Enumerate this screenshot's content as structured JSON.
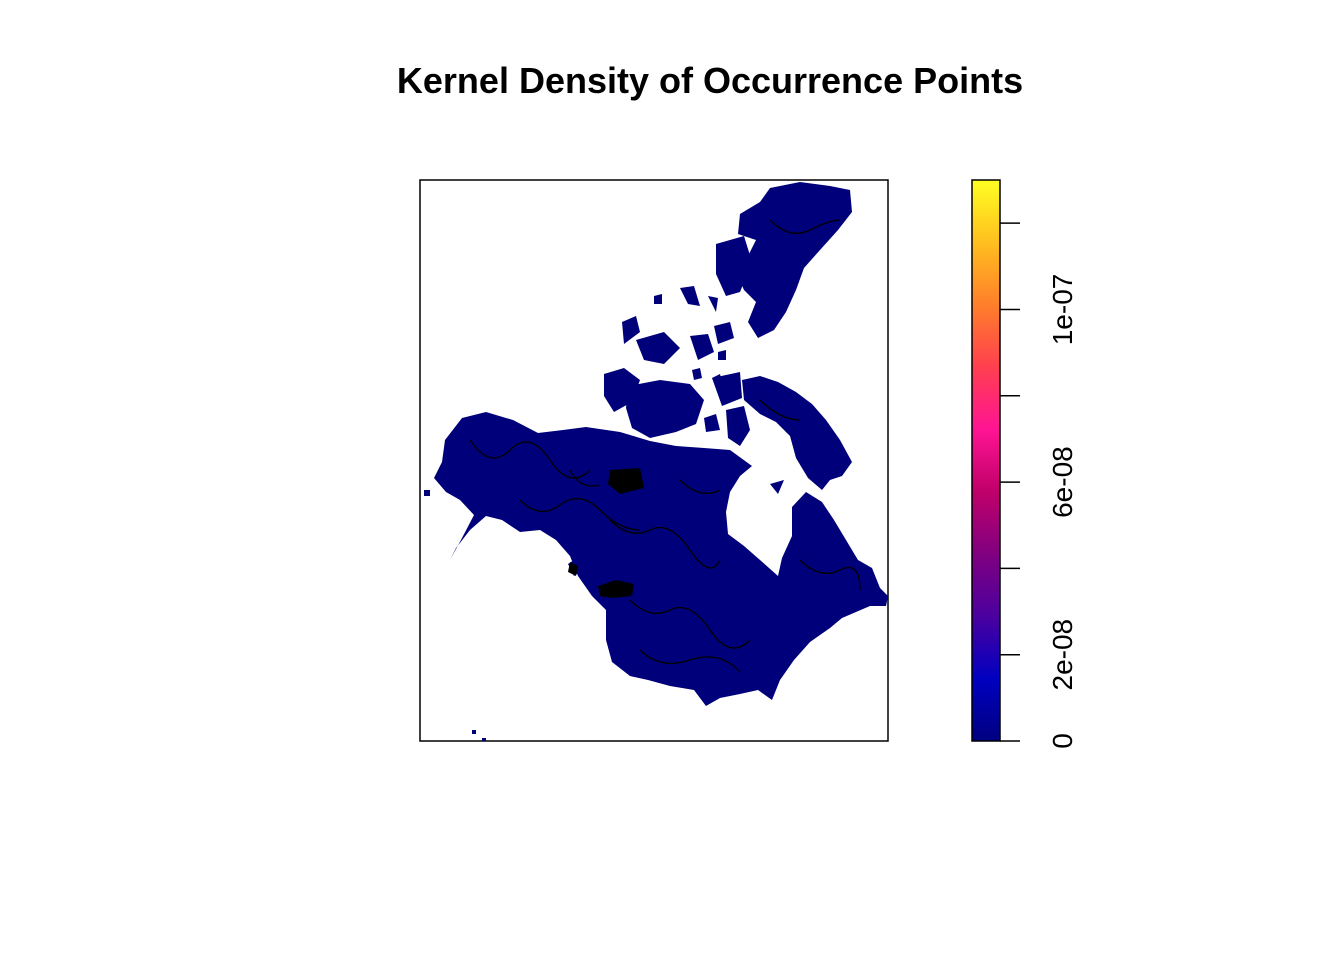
{
  "title": "Kernel Density of Occurrence Points",
  "map": {
    "raster_color": "#00007A",
    "background": "#FFFFFF",
    "contour_color": "#000000"
  },
  "legend": {
    "min": 0,
    "max": 1.3e-07,
    "colors": [
      "#000080",
      "#0000C0",
      "#4B009F",
      "#800080",
      "#C0006A",
      "#FF1493",
      "#FF3F4F",
      "#FF7F2A",
      "#FFBF1F",
      "#FFFF22"
    ],
    "major_ticks": [
      {
        "value": 0,
        "label": "0"
      },
      {
        "value": 2e-08,
        "label": "2e-08"
      },
      {
        "value": 6e-08,
        "label": "6e-08"
      },
      {
        "value": 1e-07,
        "label": "1e-07"
      }
    ],
    "minor_ticks": [
      4e-08,
      8e-08,
      1.2e-07
    ]
  }
}
